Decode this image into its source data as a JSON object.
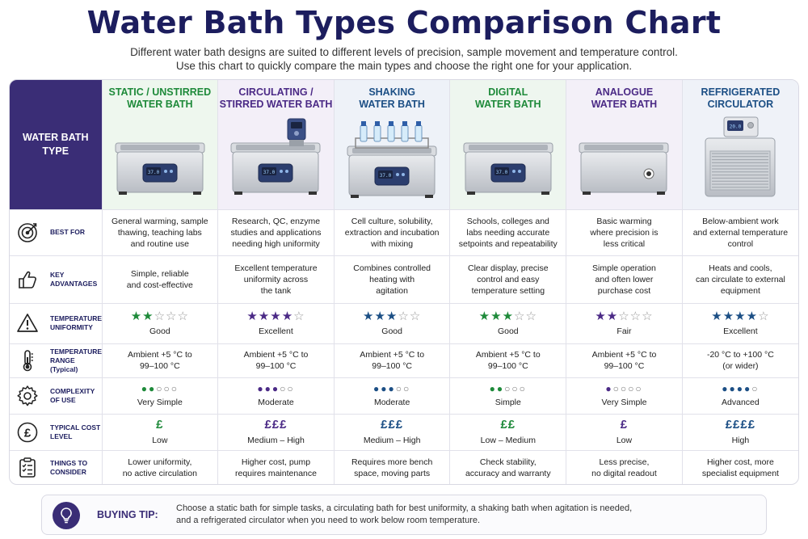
{
  "title": "Water Bath Types Comparison Chart",
  "subtitle_lines": [
    "Different water bath designs are suited to different levels of precision, sample movement and temperature control.",
    "Use this chart to quickly compare the main types and choose the right one for your application."
  ],
  "corner_label": [
    "WATER BATH",
    "TYPE"
  ],
  "columns": [
    {
      "name": [
        "STATIC / UNSTIRRED",
        "WATER BATH"
      ],
      "theme": "green",
      "display": "37.0"
    },
    {
      "name": [
        "CIRCULATING /",
        "STIRRED WATER BATH"
      ],
      "theme": "purple",
      "display": "37.0"
    },
    {
      "name": [
        "SHAKING",
        "WATER BATH"
      ],
      "theme": "blue",
      "display": "37.0"
    },
    {
      "name": [
        "DIGITAL",
        "WATER BATH"
      ],
      "theme": "green",
      "display": "37.0"
    },
    {
      "name": [
        "ANALOGUE",
        "WATER BATH"
      ],
      "theme": "purple",
      "display": ""
    },
    {
      "name": [
        "REFRIGERATED",
        "CIRCULATOR"
      ],
      "theme": "blue",
      "display": "20.0"
    }
  ],
  "rows": {
    "best_for": {
      "label": [
        "BEST FOR"
      ],
      "icon": "target-icon",
      "cells": [
        [
          "General warming, sample",
          "thawing, teaching labs",
          "and routine use"
        ],
        [
          "Research, QC, enzyme",
          "studies and applications",
          "needing high uniformity"
        ],
        [
          "Cell culture, solubility,",
          "extraction and incubation",
          "with mixing"
        ],
        [
          "Schools, colleges and",
          "labs needing accurate",
          "setpoints and repeatability"
        ],
        [
          "Basic warming",
          "where precision is",
          "less critical"
        ],
        [
          "Below-ambient work",
          "and external temperature",
          "control"
        ]
      ]
    },
    "advantages": {
      "label": [
        "KEY",
        "ADVANTAGES"
      ],
      "icon": "thumbs-up-icon",
      "cells": [
        [
          "Simple, reliable",
          "and cost-effective"
        ],
        [
          "Excellent temperature",
          "uniformity across",
          "the tank"
        ],
        [
          "Combines controlled",
          "heating with",
          "agitation"
        ],
        [
          "Clear display, precise",
          "control and easy",
          "temperature setting"
        ],
        [
          "Simple operation",
          "and often lower",
          "purchase cost"
        ],
        [
          "Heats and cools,",
          "can circulate to external",
          "equipment"
        ]
      ]
    },
    "uniformity": {
      "label": [
        "TEMPERATURE",
        "UNIFORMITY"
      ],
      "icon": "warning-icon",
      "stars": [
        2,
        4,
        3,
        3,
        2,
        4
      ],
      "stars_max": 5,
      "ratings": [
        "Good",
        "Excellent",
        "Good",
        "Good",
        "Fair",
        "Excellent"
      ]
    },
    "range": {
      "label": [
        "TEMPERATURE",
        "RANGE (Typical)"
      ],
      "icon": "thermometer-icon",
      "cells": [
        [
          "Ambient +5 °C to",
          "99–100 °C"
        ],
        [
          "Ambient +5 °C to",
          "99–100 °C"
        ],
        [
          "Ambient +5 °C to",
          "99–100 °C"
        ],
        [
          "Ambient +5 °C to",
          "99–100 °C"
        ],
        [
          "Ambient +5 °C to",
          "99–100 °C"
        ],
        [
          "-20 °C to +100 °C",
          "(or wider)"
        ]
      ]
    },
    "complexity": {
      "label": [
        "COMPLEXITY",
        "OF USE"
      ],
      "icon": "gear-icon",
      "dots": [
        2,
        3,
        3,
        2,
        1,
        4
      ],
      "dots_max": 5,
      "ratings": [
        "Very Simple",
        "Moderate",
        "Moderate",
        "Simple",
        "Very Simple",
        "Advanced"
      ]
    },
    "cost": {
      "label": [
        "TYPICAL COST",
        "LEVEL"
      ],
      "icon": "pound-icon",
      "pounds": [
        "£",
        "£££",
        "£££",
        "££",
        "£",
        "££££"
      ],
      "ratings": [
        "Low",
        "Medium – High",
        "Medium – High",
        "Low – Medium",
        "Low",
        "High"
      ]
    },
    "consider": {
      "label": [
        "THINGS TO",
        "CONSIDER"
      ],
      "icon": "checklist-icon",
      "cells": [
        [
          "Lower uniformity,",
          "no active circulation"
        ],
        [
          "Higher cost, pump",
          "requires maintenance"
        ],
        [
          "Requires more bench",
          "space, moving parts"
        ],
        [
          "Check stability,",
          "accuracy and warranty"
        ],
        [
          "Less precise,",
          "no digital readout"
        ],
        [
          "Higher cost, more",
          "specialist equipment"
        ]
      ]
    }
  },
  "tip": {
    "label": "BUYING TIP:",
    "lines": [
      "Choose a static bath for simple tasks, a circulating bath for best uniformity, a shaking bath when agitation is needed,",
      "and a refrigerated circulator when you need to work below room temperature."
    ]
  },
  "colors": {
    "green": "#1e8a3a",
    "purple": "#4b2a86",
    "blue": "#1c4f85",
    "header": "#3a2d76",
    "title": "#1c1d5e"
  }
}
